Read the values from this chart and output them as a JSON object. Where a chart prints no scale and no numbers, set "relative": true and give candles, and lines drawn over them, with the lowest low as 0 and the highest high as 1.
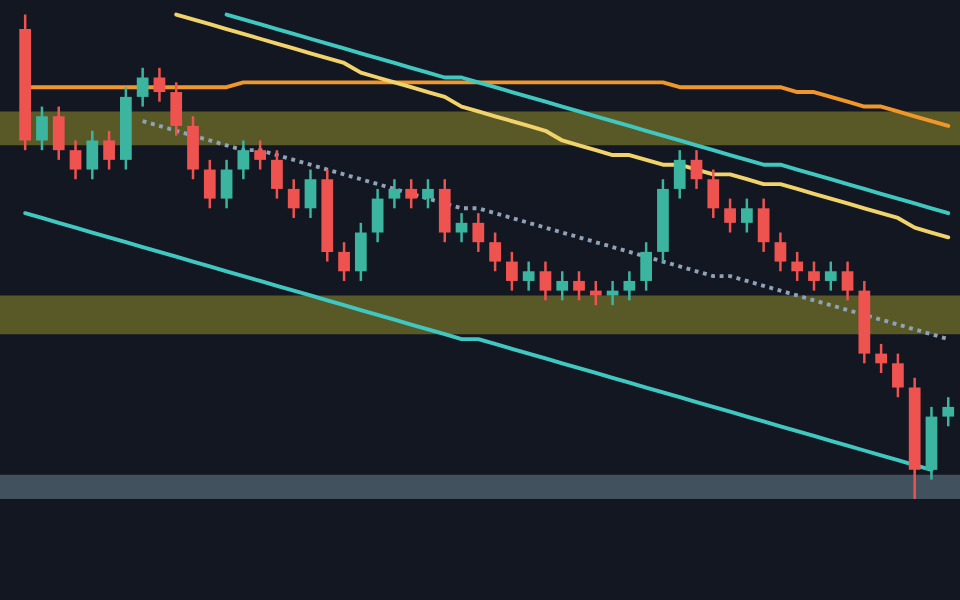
{
  "chart_data": {
    "type": "candlestick",
    "relative": true,
    "categories": [
      null,
      null,
      null,
      null,
      null,
      null,
      null,
      null,
      null,
      null,
      null,
      null,
      null,
      null,
      null,
      null,
      null,
      null,
      null,
      null,
      null,
      null,
      null,
      null,
      null,
      null,
      null,
      null,
      null,
      null,
      null,
      null,
      null,
      null,
      null,
      null,
      null,
      null,
      null,
      null,
      null,
      null,
      null,
      null,
      null,
      null,
      null,
      null,
      null,
      null,
      null,
      null,
      null,
      null,
      null,
      null
    ],
    "ohlc": [
      [
        0.97,
        1.0,
        0.72,
        0.74
      ],
      [
        0.74,
        0.81,
        0.72,
        0.79
      ],
      [
        0.79,
        0.81,
        0.7,
        0.72
      ],
      [
        0.72,
        0.74,
        0.66,
        0.68
      ],
      [
        0.68,
        0.76,
        0.66,
        0.74
      ],
      [
        0.74,
        0.76,
        0.68,
        0.7
      ],
      [
        0.7,
        0.85,
        0.68,
        0.83
      ],
      [
        0.83,
        0.89,
        0.81,
        0.87
      ],
      [
        0.87,
        0.89,
        0.82,
        0.84
      ],
      [
        0.84,
        0.86,
        0.75,
        0.77
      ],
      [
        0.77,
        0.79,
        0.66,
        0.68
      ],
      [
        0.68,
        0.7,
        0.6,
        0.62
      ],
      [
        0.62,
        0.7,
        0.6,
        0.68
      ],
      [
        0.68,
        0.74,
        0.66,
        0.72
      ],
      [
        0.72,
        0.74,
        0.68,
        0.7
      ],
      [
        0.7,
        0.72,
        0.62,
        0.64
      ],
      [
        0.64,
        0.66,
        0.58,
        0.6
      ],
      [
        0.6,
        0.68,
        0.58,
        0.66
      ],
      [
        0.66,
        0.68,
        0.49,
        0.51
      ],
      [
        0.51,
        0.53,
        0.45,
        0.47
      ],
      [
        0.47,
        0.57,
        0.45,
        0.55
      ],
      [
        0.55,
        0.64,
        0.53,
        0.62
      ],
      [
        0.62,
        0.66,
        0.6,
        0.64
      ],
      [
        0.64,
        0.66,
        0.6,
        0.62
      ],
      [
        0.62,
        0.66,
        0.6,
        0.64
      ],
      [
        0.64,
        0.66,
        0.53,
        0.55
      ],
      [
        0.55,
        0.59,
        0.53,
        0.57
      ],
      [
        0.57,
        0.59,
        0.51,
        0.53
      ],
      [
        0.53,
        0.55,
        0.47,
        0.49
      ],
      [
        0.49,
        0.51,
        0.43,
        0.45
      ],
      [
        0.45,
        0.49,
        0.43,
        0.47
      ],
      [
        0.47,
        0.49,
        0.41,
        0.43
      ],
      [
        0.43,
        0.47,
        0.41,
        0.45
      ],
      [
        0.45,
        0.47,
        0.41,
        0.43
      ],
      [
        0.43,
        0.45,
        0.4,
        0.42
      ],
      [
        0.42,
        0.45,
        0.4,
        0.43
      ],
      [
        0.43,
        0.47,
        0.41,
        0.45
      ],
      [
        0.45,
        0.53,
        0.43,
        0.51
      ],
      [
        0.51,
        0.66,
        0.49,
        0.64
      ],
      [
        0.64,
        0.72,
        0.62,
        0.7
      ],
      [
        0.7,
        0.72,
        0.64,
        0.66
      ],
      [
        0.66,
        0.68,
        0.58,
        0.6
      ],
      [
        0.6,
        0.62,
        0.55,
        0.57
      ],
      [
        0.57,
        0.62,
        0.55,
        0.6
      ],
      [
        0.6,
        0.62,
        0.51,
        0.53
      ],
      [
        0.53,
        0.55,
        0.47,
        0.49
      ],
      [
        0.49,
        0.51,
        0.45,
        0.47
      ],
      [
        0.47,
        0.49,
        0.43,
        0.45
      ],
      [
        0.45,
        0.49,
        0.43,
        0.47
      ],
      [
        0.47,
        0.49,
        0.41,
        0.43
      ],
      [
        0.43,
        0.45,
        0.28,
        0.3
      ],
      [
        0.3,
        0.32,
        0.26,
        0.28
      ],
      [
        0.28,
        0.3,
        0.21,
        0.23
      ],
      [
        0.23,
        0.25,
        0.0,
        0.06
      ],
      [
        0.06,
        0.19,
        0.04,
        0.17
      ],
      [
        0.17,
        0.21,
        0.15,
        0.19
      ]
    ],
    "series": [
      {
        "type": "line",
        "color": "#f0962a",
        "values": [
          0.85,
          0.85,
          0.85,
          0.85,
          0.85,
          0.85,
          0.85,
          0.85,
          0.85,
          0.85,
          0.85,
          0.85,
          0.85,
          0.86,
          0.86,
          0.86,
          0.86,
          0.86,
          0.86,
          0.86,
          0.86,
          0.86,
          0.86,
          0.86,
          0.86,
          0.86,
          0.86,
          0.86,
          0.86,
          0.86,
          0.86,
          0.86,
          0.86,
          0.86,
          0.86,
          0.86,
          0.86,
          0.86,
          0.86,
          0.85,
          0.85,
          0.85,
          0.85,
          0.85,
          0.85,
          0.85,
          0.84,
          0.84,
          0.83,
          0.82,
          0.81,
          0.81,
          0.8,
          0.79,
          0.78,
          0.77
        ]
      },
      {
        "type": "line",
        "color": "#f2d36b",
        "values": [
          null,
          null,
          null,
          null,
          null,
          null,
          null,
          null,
          null,
          1.0,
          0.99,
          0.98,
          0.97,
          0.96,
          0.95,
          0.94,
          0.93,
          0.92,
          0.91,
          0.9,
          0.88,
          0.87,
          0.86,
          0.85,
          0.84,
          0.83,
          0.81,
          0.8,
          0.79,
          0.78,
          0.77,
          0.76,
          0.74,
          0.73,
          0.72,
          0.71,
          0.71,
          0.7,
          0.69,
          0.69,
          0.68,
          0.67,
          0.67,
          0.66,
          0.65,
          0.65,
          0.64,
          0.63,
          0.62,
          0.61,
          0.6,
          0.59,
          0.58,
          0.56,
          0.55,
          0.54
        ]
      },
      {
        "type": "line",
        "color": "#3fc7c0",
        "values": [
          null,
          null,
          null,
          null,
          null,
          null,
          null,
          null,
          null,
          null,
          null,
          null,
          1.0,
          0.99,
          0.98,
          0.97,
          0.96,
          0.95,
          0.94,
          0.93,
          0.92,
          0.91,
          0.9,
          0.89,
          0.88,
          0.87,
          0.87,
          0.86,
          0.85,
          0.84,
          0.83,
          0.82,
          0.81,
          0.8,
          0.79,
          0.78,
          0.77,
          0.76,
          0.75,
          0.74,
          0.73,
          0.72,
          0.71,
          0.7,
          0.69,
          0.69,
          0.68,
          0.67,
          0.66,
          0.65,
          0.64,
          0.63,
          0.62,
          0.61,
          0.6,
          0.59
        ]
      },
      {
        "type": "line",
        "color": "#3fc7c0",
        "values": [
          0.59,
          0.58,
          0.57,
          0.56,
          0.55,
          0.54,
          0.53,
          0.52,
          0.51,
          0.5,
          0.49,
          0.48,
          0.47,
          0.46,
          0.45,
          0.44,
          0.43,
          0.42,
          0.41,
          0.4,
          0.39,
          0.38,
          0.37,
          0.36,
          0.35,
          0.34,
          0.33,
          0.33,
          0.32,
          0.31,
          0.3,
          0.29,
          0.28,
          0.27,
          0.26,
          0.25,
          0.24,
          0.23,
          0.22,
          0.21,
          0.2,
          0.19,
          0.18,
          0.17,
          0.16,
          0.15,
          0.14,
          0.13,
          0.12,
          0.11,
          0.1,
          0.09,
          0.08,
          0.07,
          0.06,
          null
        ]
      },
      {
        "type": "line",
        "color": "#8fa3b8",
        "line_style": "dotted",
        "values": [
          null,
          null,
          null,
          null,
          null,
          null,
          null,
          0.78,
          0.77,
          0.76,
          0.75,
          0.74,
          0.73,
          0.72,
          0.72,
          0.71,
          0.7,
          0.69,
          0.68,
          0.67,
          0.66,
          0.65,
          0.64,
          0.63,
          0.62,
          0.61,
          0.6,
          0.6,
          0.59,
          0.58,
          0.57,
          0.56,
          0.55,
          0.54,
          0.53,
          0.52,
          0.51,
          0.5,
          0.49,
          0.48,
          0.47,
          0.46,
          0.46,
          0.45,
          0.44,
          0.43,
          0.42,
          0.41,
          0.4,
          0.39,
          0.38,
          0.37,
          0.36,
          0.35,
          0.34,
          0.33
        ]
      }
    ],
    "bands": [
      {
        "axis": "y",
        "from": 0.73,
        "to": 0.8,
        "color": "#6b6a2a"
      },
      {
        "axis": "y",
        "from": 0.34,
        "to": 0.42,
        "color": "#6b6a2a"
      },
      {
        "axis": "y",
        "from": 0.0,
        "to": 0.05,
        "color": "#4e626e"
      }
    ]
  }
}
